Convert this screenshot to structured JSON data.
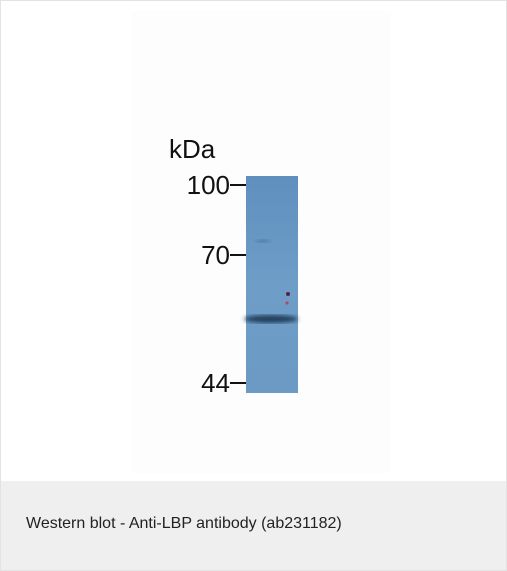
{
  "blot": {
    "unit_label": "kDa",
    "markers": [
      "100",
      "70",
      "44"
    ]
  },
  "caption": "Western blot - Anti-LBP antibody (ab231182)"
}
